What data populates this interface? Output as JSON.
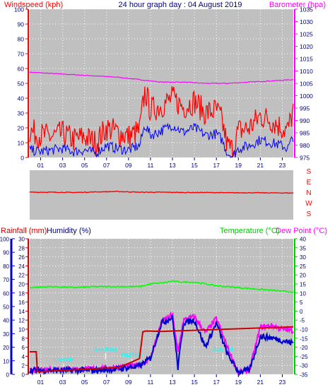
{
  "header": {
    "left_label": "Windspeed (kph)",
    "title": "24 hour graph day : 04 August 2019",
    "right_label": "Barometer (hpa)"
  },
  "colors": {
    "wind_gust": "#ff0000",
    "wind_avg": "#0000ff",
    "barometer": "#ff00ff",
    "direction": "#ff0000",
    "temperature": "#00ff00",
    "dewpoint": "#ff00ff",
    "rainfall": "#cc0000",
    "humidity": "#0000cc",
    "plot_bg": "#c0c0c0",
    "annotation": "#00ffff",
    "axis_blue": "#000080",
    "left_axis_red": "#ff0000"
  },
  "bottom_labels": {
    "rainfall": "Rainfall (mm)",
    "humidity": "Humidity (%)",
    "temperature": "Temperature (°C)",
    "dewpoint": "Dew Point (°C)"
  },
  "direction_labels": [
    "S",
    "E",
    "N",
    "W",
    "S"
  ],
  "annotations": [
    {
      "text": "Lowtide",
      "hour": 3.1
    },
    {
      "text": "Sun Rise",
      "hour": 6.9
    },
    {
      "text": "Hightide",
      "hour": 9.3
    },
    {
      "text": "Sun Set",
      "hour": 17.6
    }
  ],
  "chart_data": [
    {
      "type": "line",
      "title": "24 hour graph day : 04 August 2019",
      "xlabel": "",
      "x_ticks": [
        "01",
        "03",
        "05",
        "07",
        "09",
        "11",
        "13",
        "15",
        "17",
        "19",
        "21",
        "23"
      ],
      "ylabel": "Windspeed (kph)",
      "ylim": [
        0,
        100
      ],
      "y_ticks": [
        0,
        10,
        20,
        30,
        40,
        50,
        60,
        70,
        80,
        90,
        100
      ],
      "y2label": "Barometer (hpa)",
      "y2lim": [
        975,
        1035
      ],
      "y2_ticks": [
        975,
        980,
        985,
        990,
        995,
        1000,
        1005,
        1010,
        1015,
        1020,
        1025,
        1030,
        1035
      ],
      "grid": true,
      "series": [
        {
          "name": "Windspeed (kph)",
          "axis": "y",
          "x": [
            0,
            1,
            2,
            3,
            4,
            5,
            6,
            7,
            8,
            9,
            10,
            10.5,
            11,
            12,
            13,
            14,
            15,
            16,
            17,
            17.5,
            18,
            18.5,
            19,
            20,
            21,
            22,
            23,
            23.5,
            24
          ],
          "values": [
            18,
            15,
            14,
            16,
            12,
            14,
            10,
            20,
            17,
            14,
            18,
            45,
            32,
            35,
            40,
            34,
            38,
            30,
            32,
            25,
            8,
            5,
            18,
            20,
            28,
            25,
            20,
            18,
            32
          ]
        },
        {
          "name": "",
          "axis": "y",
          "x": [
            0,
            1,
            2,
            3,
            4,
            5,
            6,
            7,
            8,
            9,
            10,
            10.5,
            11,
            12,
            13,
            14,
            15,
            16,
            17,
            17.5,
            18,
            18.5,
            19,
            20,
            21,
            22,
            23,
            23.5,
            24
          ],
          "values": [
            5,
            4,
            5,
            6,
            4,
            5,
            3,
            8,
            6,
            5,
            8,
            22,
            15,
            18,
            22,
            17,
            20,
            15,
            16,
            12,
            3,
            1,
            6,
            8,
            12,
            10,
            8,
            6,
            14
          ]
        },
        {
          "name": "Barometer (hpa)",
          "axis": "y2",
          "x": [
            0,
            2,
            4,
            6,
            8,
            10,
            12,
            14,
            16,
            18,
            20,
            22,
            24
          ],
          "values": [
            1009.5,
            1009,
            1008.5,
            1008,
            1007.5,
            1006.5,
            1005.5,
            1005.5,
            1005,
            1005,
            1005.5,
            1006,
            1006.5
          ]
        }
      ]
    },
    {
      "type": "line",
      "title": "",
      "y_tick_labels": [
        "S",
        "E",
        "N",
        "W",
        "S"
      ],
      "series": [
        {
          "name": "",
          "x": [
            0,
            2,
            4,
            6,
            8,
            10,
            12,
            14,
            16,
            18,
            20,
            22,
            24
          ],
          "values": [
            200,
            200,
            198,
            202,
            205,
            200,
            200,
            198,
            198,
            196,
            196,
            195,
            194
          ]
        }
      ]
    },
    {
      "type": "line",
      "title": "",
      "x_ticks": [
        "01",
        "03",
        "05",
        "07",
        "09",
        "11",
        "13",
        "15",
        "17",
        "19",
        "21",
        "23"
      ],
      "ylabel": "Rainfall (mm)",
      "ylim": [
        0,
        30
      ],
      "y_ticks": [
        0,
        2,
        4,
        6,
        8,
        10,
        12,
        14,
        16,
        18,
        20,
        22,
        24,
        26,
        28,
        30
      ],
      "humidity_axis": "Humidity (%)",
      "humidity_lim": [
        0,
        100
      ],
      "humidity_ticks": [
        0,
        10,
        20,
        30,
        40,
        50,
        60,
        70,
        80,
        90,
        100
      ],
      "y2label": "Temperature (°C)",
      "y3label": "Dew Point (°C)",
      "y2lim": [
        -35,
        40
      ],
      "y2_ticks": [
        -35,
        -30,
        -25,
        -20,
        -15,
        -10,
        -5,
        0,
        5,
        10,
        15,
        20,
        25,
        30,
        35,
        40
      ],
      "grid": true,
      "series": [
        {
          "name": "Temperature (°C)",
          "axis": "y2",
          "x": [
            0,
            2,
            4,
            6,
            8,
            10,
            11,
            12,
            13,
            14,
            15,
            16,
            17,
            18,
            19,
            20,
            21,
            22,
            23,
            24
          ],
          "values": [
            13,
            13.5,
            13,
            13.5,
            13.5,
            13.5,
            15,
            15.5,
            16.5,
            16,
            16,
            15,
            14,
            13.5,
            13,
            12.5,
            12,
            11.5,
            11,
            10.5
          ]
        },
        {
          "name": "Dew Point (°C)",
          "axis": "y2",
          "x": [
            0,
            2,
            4,
            6,
            8,
            10,
            11,
            12,
            13,
            13.5,
            14,
            15,
            16,
            17,
            18,
            19,
            20,
            21,
            22,
            23,
            24
          ],
          "values": [
            -33,
            -32,
            -32,
            -32,
            -31,
            -30,
            -26,
            -6,
            -2,
            -23,
            -5,
            -3,
            -12,
            -4,
            -20,
            -34,
            -33,
            -9,
            -8,
            -10,
            -11
          ]
        },
        {
          "name": "Humidity (%)",
          "axis": "humidity",
          "x": [
            0,
            2,
            4,
            6,
            8,
            10,
            11,
            12,
            13,
            13.5,
            14,
            15,
            16,
            17,
            18,
            19,
            20,
            21,
            22,
            23,
            24
          ],
          "values": [
            3,
            3,
            3,
            3,
            4,
            6,
            12,
            38,
            42,
            5,
            38,
            40,
            20,
            38,
            15,
            2,
            3,
            28,
            27,
            25,
            23
          ]
        },
        {
          "name": "Rainfall (mm)",
          "axis": "y",
          "x": [
            0,
            0.6,
            0.7,
            4,
            8,
            9,
            10,
            10.3,
            10.6,
            12,
            24
          ],
          "values": [
            5,
            5,
            0.6,
            1,
            1.5,
            2.4,
            3.5,
            9.4,
            9.6,
            9.5,
            10.5
          ]
        }
      ]
    }
  ]
}
